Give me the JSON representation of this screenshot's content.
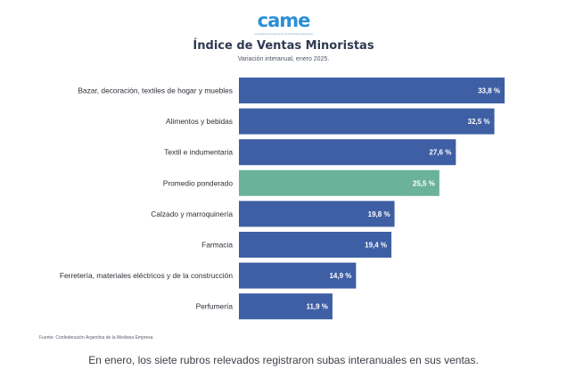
{
  "logo": {
    "text": "came",
    "tagline": "Confederación Argentina de la Mediana Empresa"
  },
  "chart": {
    "title": "Índice de Ventas Minoristas",
    "subtitle": "Variación interanual, enero 2025.",
    "source": "Fuente: Confederación Argentina de la Mediana Empresa"
  },
  "caption": "En enero, los siete rubros relevados registraron subas interanuales en sus ventas.",
  "colors": {
    "bar": "#3e5fa3",
    "highlight": "#6ab39a",
    "label": "#2b2f36"
  },
  "chart_data": {
    "type": "bar",
    "orientation": "horizontal",
    "title": "Índice de Ventas Minoristas",
    "subtitle": "Variación interanual, enero 2025.",
    "categories": [
      "Bazar, decoración, textiles de hogar y muebles",
      "Alimentos y bebidas",
      "Textil e indumentaria",
      "Promedio ponderado",
      "Calzado y marroquinería",
      "Farmacia",
      "Ferretería, materiales eléctricos y de la construcción",
      "Perfumería"
    ],
    "values": [
      33.8,
      32.5,
      27.6,
      25.5,
      19.8,
      19.4,
      14.9,
      11.9
    ],
    "value_labels": [
      "33,8 %",
      "32,5 %",
      "27,6 %",
      "25,5 %",
      "19,8 %",
      "19,4 %",
      "14,9 %",
      "11,9 %"
    ],
    "highlight_index": 3,
    "xlim": [
      0,
      33.8
    ],
    "unit": "%",
    "grid": false,
    "legend": false
  }
}
